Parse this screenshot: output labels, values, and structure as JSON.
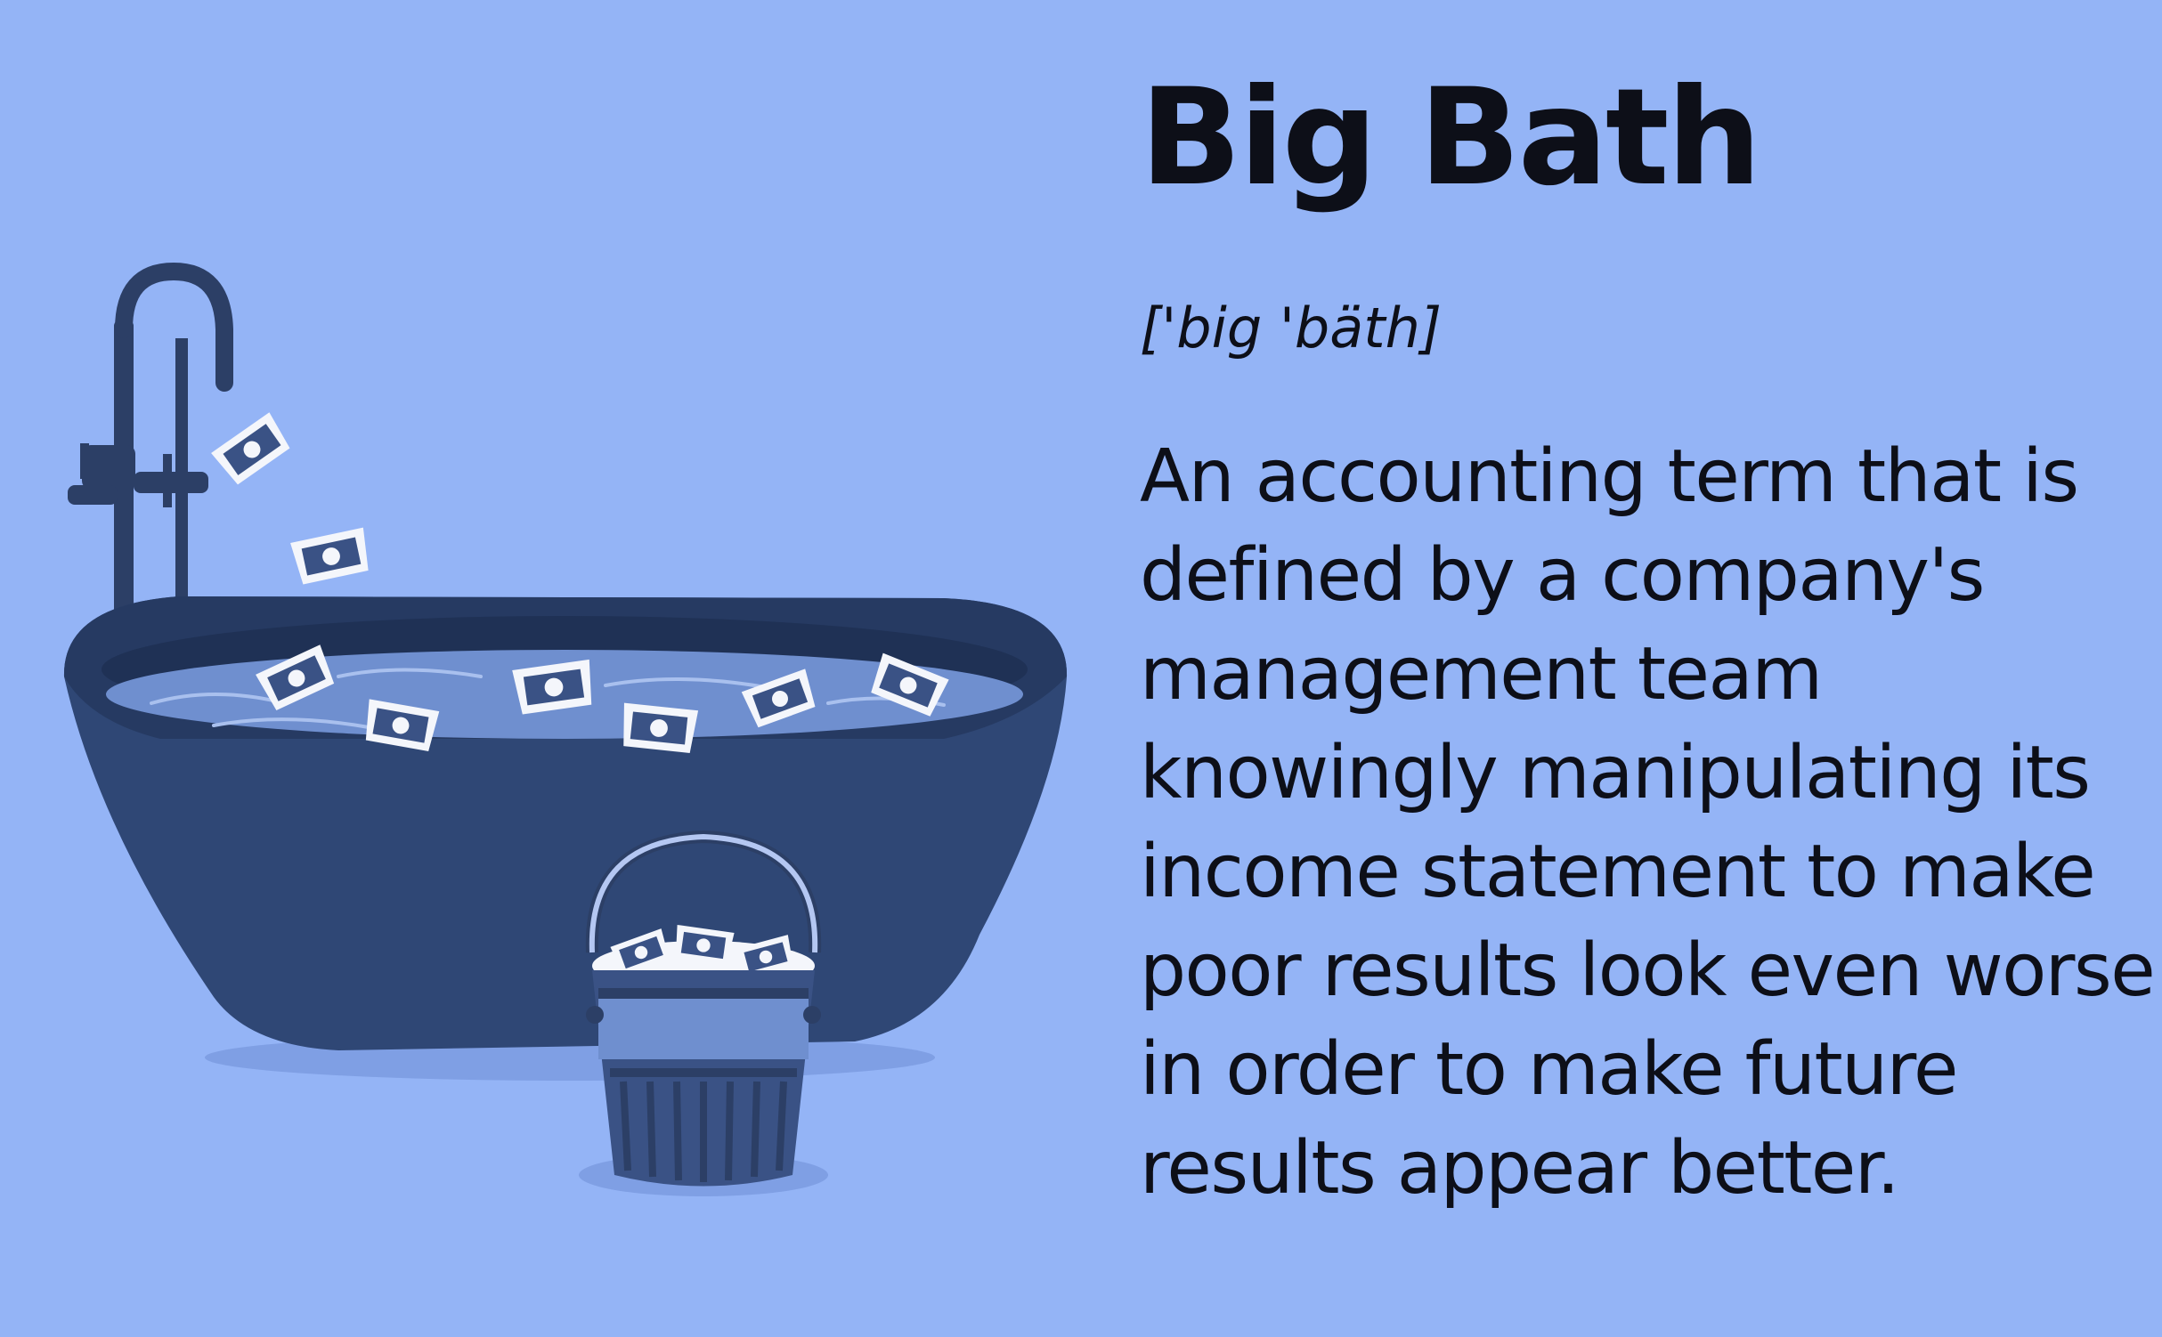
{
  "term": "Big Bath",
  "pronunciation": "['big 'bäth]",
  "definition_lines": [
    "An accounting term that is",
    "defined by a company's",
    "management team",
    "knowingly manipulating its",
    "income statement to make",
    "poor results look even worse",
    "in order to make future",
    "results appear better."
  ],
  "colors": {
    "background": "#94b4f6",
    "tub": "#2f4775",
    "water": "#6f8fcf",
    "text": "#0d0f18"
  },
  "icons": [
    "bathtub-illustration",
    "faucet-icon",
    "money-bill-icon",
    "bucket-icon"
  ]
}
